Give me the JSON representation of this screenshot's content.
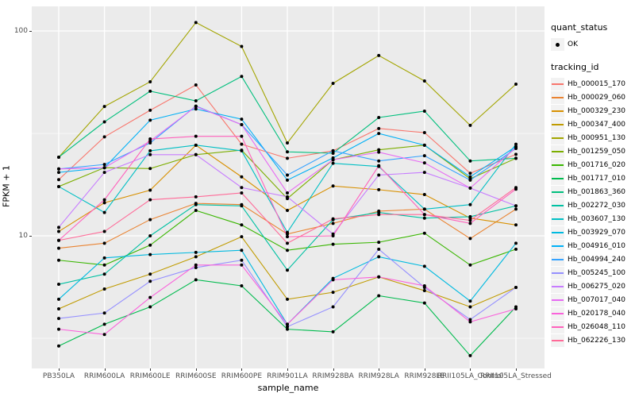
{
  "chart_data": {
    "type": "line",
    "title": "",
    "xlabel": "sample_name",
    "ylabel": "FPKM + 1",
    "y_scale": "log10",
    "y_ticks": [
      100,
      10
    ],
    "y_minor_ticks": [
      31.6,
      3.16
    ],
    "ylim": [
      2.3,
      140
    ],
    "grid": true,
    "panel_bg": "#EBEBEB",
    "gridline_color": "#FFFFFF",
    "point_color": "#000000",
    "legend_position": "right",
    "categories": [
      "PB350LA",
      "RRIM600LA",
      "RRIM600LE",
      "RRIM600SE",
      "RRIM600PE",
      "RRIM901LA",
      "RRIM928BA",
      "RRIM928LA",
      "RRIM928LE",
      "RRII105LA_Control",
      "RRII105LA_Stressed"
    ],
    "legend": {
      "quant_status_title": "quant_status",
      "quant_status_items": [
        {
          "label": "OK",
          "marker": "point"
        }
      ],
      "tracking_id_title": "tracking_id"
    },
    "series": [
      {
        "name": "Hb_000015_170",
        "color": "#F8766D",
        "values": [
          18.8,
          30.4,
          41,
          54.5,
          28,
          23.9,
          26,
          33.4,
          31.9,
          20.2,
          25
        ]
      },
      {
        "name": "Hb_000029_060",
        "color": "#EA8331",
        "values": [
          8.7,
          9.2,
          12,
          14.4,
          14.2,
          10.2,
          11.5,
          13.2,
          13.5,
          9.7,
          13.5
        ]
      },
      {
        "name": "Hb_000329_230",
        "color": "#D89000",
        "values": [
          10.5,
          14.5,
          16.7,
          27.7,
          19.4,
          13.3,
          17.5,
          16.8,
          15.9,
          12.2,
          11.3
        ]
      },
      {
        "name": "Hb_000347_400",
        "color": "#C09B00",
        "values": [
          4.4,
          5.5,
          6.5,
          7.9,
          9.9,
          4.9,
          5.3,
          6.3,
          5.4,
          4.5,
          5.6
        ]
      },
      {
        "name": "Hb_000951_130",
        "color": "#A3A500",
        "values": [
          24.2,
          42.8,
          56.5,
          110,
          84,
          28.4,
          55.5,
          75.9,
          57,
          34.6,
          55
        ]
      },
      {
        "name": "Hb_001259_050",
        "color": "#7CAE00",
        "values": [
          17.4,
          21.5,
          21.3,
          24.9,
          26.2,
          15.2,
          23.5,
          26.3,
          27.7,
          19,
          23.9
        ]
      },
      {
        "name": "Hb_001716_020",
        "color": "#39B600",
        "values": [
          7.6,
          7.2,
          9,
          13.3,
          11.3,
          8.5,
          9.1,
          9.3,
          10.3,
          7.2,
          8.6
        ]
      },
      {
        "name": "Hb_001717_010",
        "color": "#00BB4E",
        "values": [
          2.9,
          3.7,
          4.5,
          6.1,
          5.7,
          3.5,
          3.4,
          5.1,
          4.7,
          2.6,
          4.5
        ]
      },
      {
        "name": "Hb_001863_360",
        "color": "#00BF7D",
        "values": [
          24.2,
          36,
          50.8,
          45.6,
          60,
          25.7,
          25.3,
          37.8,
          40.6,
          23.2,
          23.9
        ]
      },
      {
        "name": "Hb_002272_030",
        "color": "#00C1A3",
        "values": [
          5.8,
          6.5,
          10,
          14.2,
          14,
          6.8,
          12,
          13,
          12.2,
          12.4,
          14
        ]
      },
      {
        "name": "Hb_003607_130",
        "color": "#00BFC4",
        "values": [
          17.4,
          13,
          26,
          27.7,
          26,
          10.4,
          22.6,
          21.8,
          13.5,
          14.2,
          28
        ]
      },
      {
        "name": "Hb_003929_070",
        "color": "#00BAE0",
        "values": [
          4.9,
          7.8,
          8.1,
          8.3,
          8.5,
          3.7,
          6.2,
          7.9,
          7.1,
          4.8,
          9.2
        ]
      },
      {
        "name": "Hb_004916_010",
        "color": "#00B0F6",
        "values": [
          20.4,
          21.5,
          36.7,
          41.6,
          37.1,
          18.7,
          24,
          31.6,
          27.7,
          19.4,
          27.3
        ]
      },
      {
        "name": "Hb_004994_240",
        "color": "#35A2FF",
        "values": [
          21.2,
          22.3,
          28.4,
          43,
          34.9,
          19.8,
          26,
          23.2,
          24.6,
          18.7,
          26.7
        ]
      },
      {
        "name": "Hb_005245_100",
        "color": "#9590FF",
        "values": [
          3.95,
          4.2,
          6,
          7,
          7.6,
          3.6,
          4.5,
          8.6,
          5.6,
          3.9,
          5.6
        ]
      },
      {
        "name": "Hb_006275_020",
        "color": "#C77CFF",
        "values": [
          11,
          20.4,
          24.9,
          24.9,
          17.2,
          15.5,
          10.2,
          19.8,
          20.4,
          17.1,
          14
        ]
      },
      {
        "name": "Hb_007017_040",
        "color": "#E76BF3",
        "values": [
          21.2,
          21.5,
          29,
          42.8,
          34.9,
          16.2,
          23.5,
          25.6,
          22.7,
          17.1,
          27
        ]
      },
      {
        "name": "Hb_020178_040",
        "color": "#FA62DB",
        "values": [
          3.5,
          3.3,
          5,
          7.2,
          7.2,
          3.7,
          6.1,
          6.3,
          5.7,
          3.8,
          4.4
        ]
      },
      {
        "name": "Hb_026048_110",
        "color": "#FF62BC",
        "values": [
          9.5,
          15,
          29.7,
          30.6,
          30.6,
          9.9,
          10,
          22,
          12.7,
          11.5,
          16.9
        ]
      },
      {
        "name": "Hb_062226_130",
        "color": "#FF6A98",
        "values": [
          9.5,
          10.5,
          15,
          15.5,
          16.2,
          9.2,
          12.1,
          12.7,
          12.7,
          11.9,
          17.2
        ]
      }
    ]
  }
}
